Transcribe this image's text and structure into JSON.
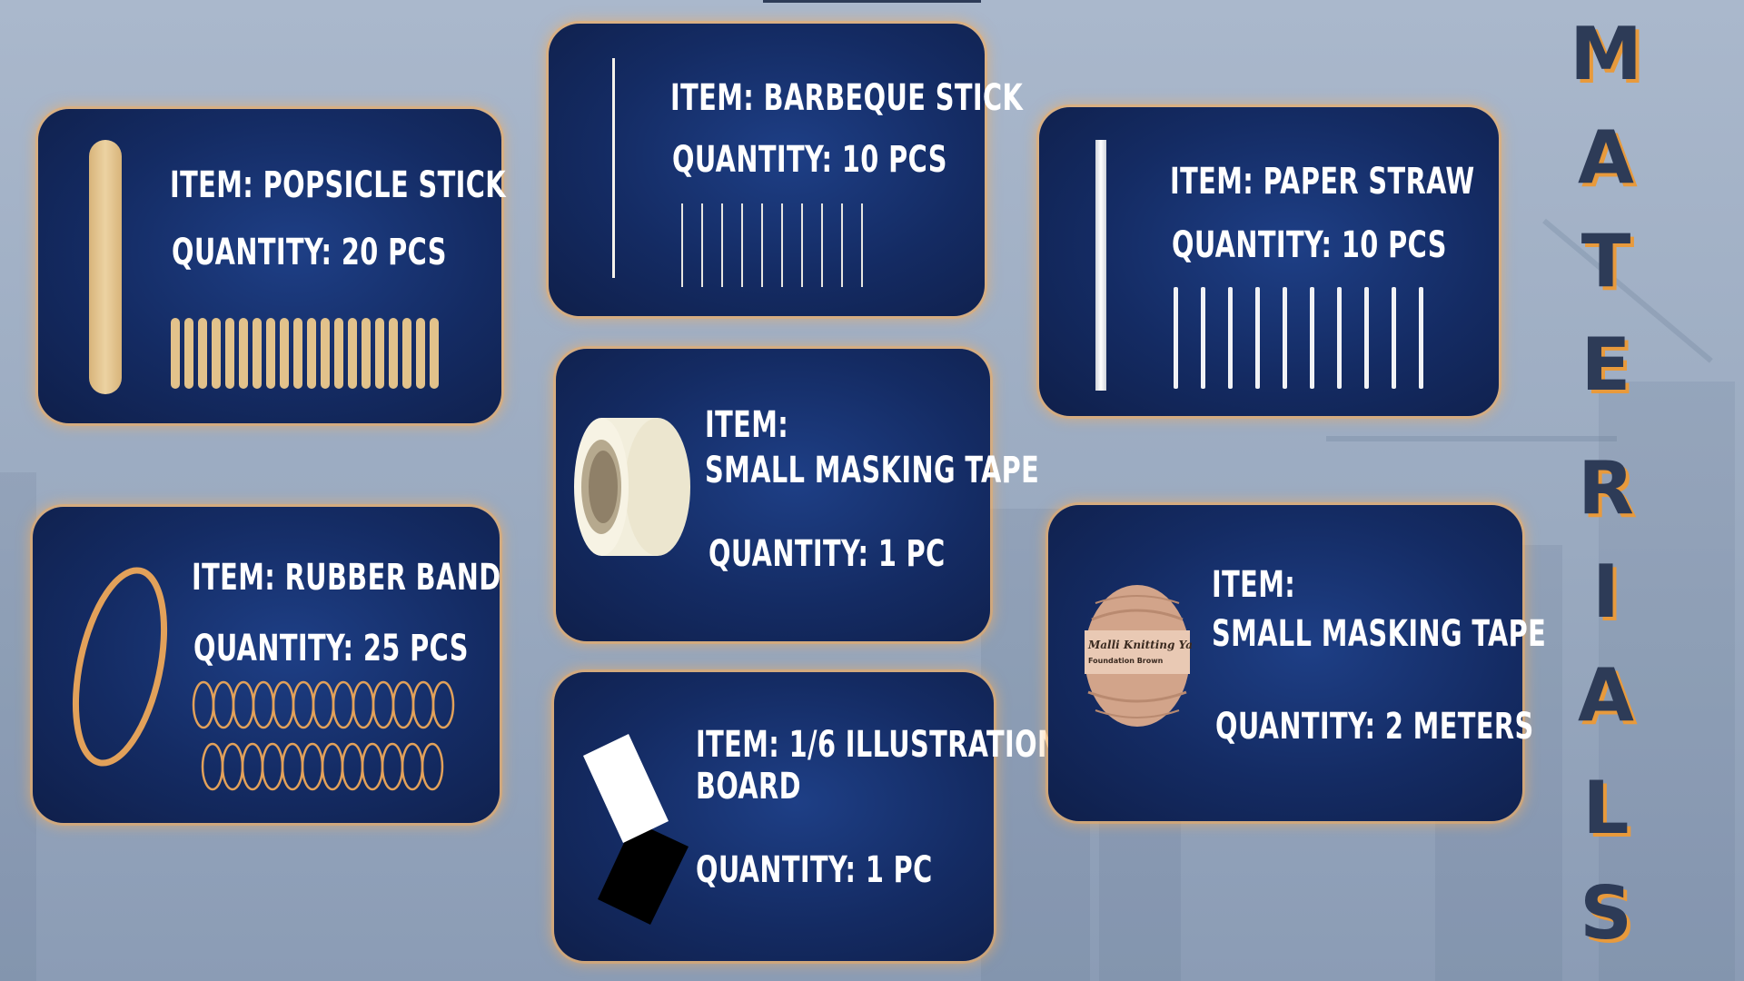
{
  "title": {
    "letters": [
      "M",
      "A",
      "T",
      "E",
      "R",
      "I",
      "A",
      "L",
      "S"
    ]
  },
  "materials": [
    {
      "item": "ITEM: POPSICLE STICK",
      "quantity": "QUANTITY: 20 PCS",
      "icon": "popsicle-stick-icon",
      "count": 20
    },
    {
      "item": "ITEM: BARBEQUE STICK",
      "quantity": "QUANTITY: 10 PCS",
      "icon": "barbeque-stick-icon",
      "count": 10
    },
    {
      "item": "ITEM: PAPER STRAW",
      "quantity": "QUANTITY: 10 PCS",
      "icon": "paper-straw-icon",
      "count": 10
    },
    {
      "item_line1": "ITEM:",
      "item_line2": "SMALL MASKING TAPE",
      "quantity": "QUANTITY: 1 PC",
      "icon": "masking-tape-icon"
    },
    {
      "item": "ITEM: RUBBER BAND",
      "quantity": "QUANTITY: 25 PCS",
      "icon": "rubber-band-icon"
    },
    {
      "item_line1": "ITEM: 1/6 ILLUSTRATION",
      "item_line2": "BOARD",
      "quantity": "QUANTITY: 1 PC",
      "icon": "illustration-board-icon"
    },
    {
      "item_line1": "ITEM:",
      "item_line2": "SMALL MASKING TAPE",
      "quantity": "QUANTITY: 2 METERS",
      "icon": "yarn-ball-icon",
      "label_line1": "Malli Knitting Yarn",
      "label_line2": "Foundation Brown"
    }
  ],
  "colors": {
    "card": "#142b63",
    "card_glow": "#f4ad5d",
    "title": "#2d3b57",
    "title_shadow": "#e89a3c",
    "popsicle": "#e2c28b",
    "rubber_band": "#e2a15a",
    "yarn": "#d2a48a"
  }
}
